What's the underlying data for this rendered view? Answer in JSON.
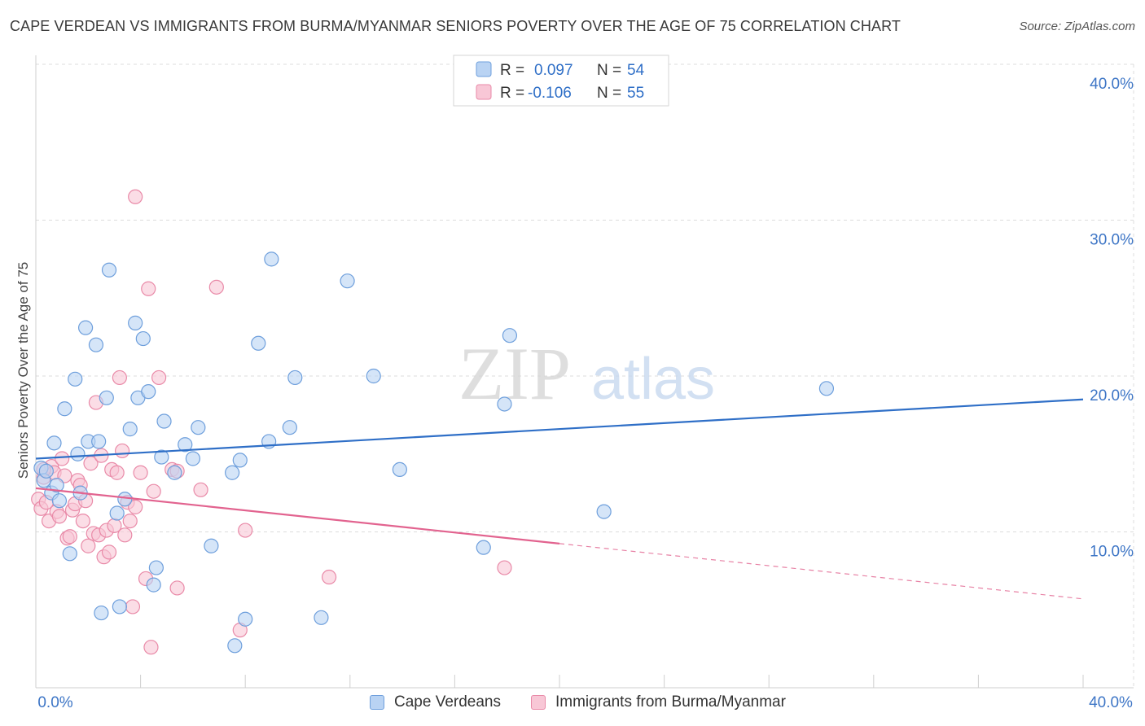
{
  "header": {
    "title": "CAPE VERDEAN VS IMMIGRANTS FROM BURMA/MYANMAR SENIORS POVERTY OVER THE AGE OF 75 CORRELATION CHART",
    "source": "Source: ZipAtlas.com"
  },
  "watermark": {
    "zip": "ZIP",
    "atlas": "atlas"
  },
  "colors": {
    "blue_fill": "#b9d3f3",
    "blue_stroke": "#6e9fdc",
    "blue_line": "#2f6fc7",
    "pink_fill": "#f8c7d6",
    "pink_stroke": "#e98aa8",
    "pink_line": "#e2638f",
    "axis_text": "#3e76c6",
    "grid": "#dcdcdc"
  },
  "chart_data": {
    "type": "scatter",
    "title": "CAPE VERDEAN VS IMMIGRANTS FROM BURMA/MYANMAR SENIORS POVERTY OVER THE AGE OF 75 CORRELATION CHART",
    "xlabel": "",
    "ylabel": "Seniors Poverty Over the Age of 75",
    "xlim": [
      0,
      40
    ],
    "ylim": [
      0,
      40
    ],
    "x_tick_labels": [
      "0.0%",
      "40.0%"
    ],
    "y_ticks": [
      10,
      20,
      30,
      40
    ],
    "y_tick_labels": [
      "10.0%",
      "20.0%",
      "30.0%",
      "40.0%"
    ],
    "grid": true,
    "legend_position": "top-center",
    "stats": [
      {
        "r_label": "R =",
        "r_value": "0.097",
        "n_label": "N =",
        "n_value": "54"
      },
      {
        "r_label": "R =",
        "r_value": "-0.106",
        "n_label": "N =",
        "n_value": "55"
      }
    ],
    "series": [
      {
        "name": "Cape Verdeans",
        "trend": {
          "x0": 0,
          "y0": 14.7,
          "x1": 40,
          "y1": 18.5,
          "solid_until": 40
        },
        "points": [
          [
            0.2,
            14.1
          ],
          [
            0.3,
            13.3
          ],
          [
            0.4,
            13.9
          ],
          [
            0.6,
            12.5
          ],
          [
            0.7,
            15.7
          ],
          [
            0.8,
            13.0
          ],
          [
            0.9,
            12.0
          ],
          [
            1.1,
            17.9
          ],
          [
            1.3,
            8.6
          ],
          [
            1.5,
            19.8
          ],
          [
            1.6,
            15.0
          ],
          [
            1.7,
            12.5
          ],
          [
            1.9,
            23.1
          ],
          [
            2.0,
            15.8
          ],
          [
            2.3,
            22.0
          ],
          [
            2.4,
            15.8
          ],
          [
            2.5,
            4.8
          ],
          [
            2.7,
            18.6
          ],
          [
            2.8,
            26.8
          ],
          [
            3.1,
            11.2
          ],
          [
            3.2,
            5.2
          ],
          [
            3.4,
            12.1
          ],
          [
            3.6,
            16.6
          ],
          [
            3.8,
            23.4
          ],
          [
            3.9,
            18.6
          ],
          [
            4.1,
            22.4
          ],
          [
            4.3,
            19.0
          ],
          [
            4.5,
            6.6
          ],
          [
            4.6,
            7.7
          ],
          [
            4.8,
            14.8
          ],
          [
            4.9,
            17.1
          ],
          [
            5.3,
            13.8
          ],
          [
            5.7,
            15.6
          ],
          [
            6.0,
            14.7
          ],
          [
            6.2,
            16.7
          ],
          [
            6.7,
            9.1
          ],
          [
            7.5,
            13.8
          ],
          [
            7.6,
            2.7
          ],
          [
            7.8,
            14.6
          ],
          [
            8.0,
            4.4
          ],
          [
            8.5,
            22.1
          ],
          [
            8.9,
            15.8
          ],
          [
            9.0,
            27.5
          ],
          [
            9.7,
            16.7
          ],
          [
            9.9,
            19.9
          ],
          [
            10.9,
            4.5
          ],
          [
            11.9,
            26.1
          ],
          [
            12.9,
            20.0
          ],
          [
            13.9,
            14.0
          ],
          [
            17.1,
            9.0
          ],
          [
            17.9,
            18.2
          ],
          [
            18.1,
            22.6
          ],
          [
            21.7,
            11.3
          ],
          [
            30.2,
            19.2
          ]
        ]
      },
      {
        "name": "Immigrants from Burma/Myanmar",
        "trend": {
          "x0": 0,
          "y0": 12.8,
          "x1": 40,
          "y1": 5.7,
          "solid_until": 20
        },
        "points": [
          [
            0.1,
            12.1
          ],
          [
            0.2,
            11.5
          ],
          [
            0.3,
            13.5
          ],
          [
            0.4,
            11.9
          ],
          [
            0.5,
            10.7
          ],
          [
            0.6,
            14.2
          ],
          [
            0.7,
            13.8
          ],
          [
            0.8,
            11.3
          ],
          [
            0.9,
            11.0
          ],
          [
            1.0,
            14.7
          ],
          [
            1.1,
            13.6
          ],
          [
            1.2,
            9.6
          ],
          [
            1.3,
            9.7
          ],
          [
            1.4,
            11.4
          ],
          [
            1.5,
            11.8
          ],
          [
            1.6,
            13.3
          ],
          [
            1.7,
            13.0
          ],
          [
            1.8,
            10.7
          ],
          [
            1.9,
            12.0
          ],
          [
            2.0,
            9.1
          ],
          [
            2.1,
            14.4
          ],
          [
            2.2,
            9.9
          ],
          [
            2.3,
            18.3
          ],
          [
            2.4,
            9.8
          ],
          [
            2.5,
            14.9
          ],
          [
            2.6,
            8.4
          ],
          [
            2.7,
            10.1
          ],
          [
            2.8,
            8.7
          ],
          [
            2.9,
            14.0
          ],
          [
            3.0,
            10.4
          ],
          [
            3.1,
            13.8
          ],
          [
            3.2,
            19.9
          ],
          [
            3.3,
            15.2
          ],
          [
            3.4,
            9.8
          ],
          [
            3.5,
            11.9
          ],
          [
            3.6,
            10.7
          ],
          [
            3.7,
            5.2
          ],
          [
            3.8,
            11.6
          ],
          [
            3.8,
            31.5
          ],
          [
            4.0,
            13.8
          ],
          [
            4.2,
            7.0
          ],
          [
            4.3,
            25.6
          ],
          [
            4.4,
            2.6
          ],
          [
            4.5,
            12.6
          ],
          [
            4.7,
            19.9
          ],
          [
            5.2,
            14.0
          ],
          [
            5.4,
            13.9
          ],
          [
            5.4,
            6.4
          ],
          [
            6.3,
            12.7
          ],
          [
            6.9,
            25.7
          ],
          [
            7.8,
            3.7
          ],
          [
            8.0,
            10.1
          ],
          [
            11.2,
            7.1
          ],
          [
            17.9,
            7.7
          ],
          [
            0.3,
            14.0
          ]
        ]
      }
    ]
  }
}
